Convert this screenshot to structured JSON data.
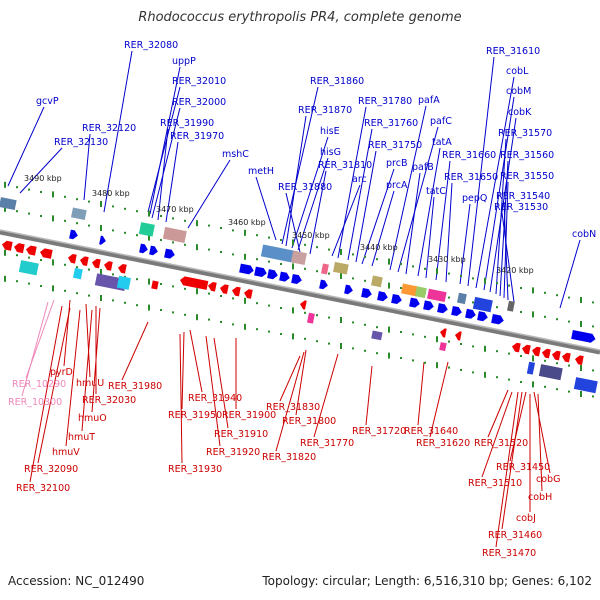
{
  "title": "Rhodococcus erythropolis PR4, complete genome",
  "footer": {
    "accession": "Accession: NC_012490",
    "topology": "Topology: circular; Length: 6,516,310 bp; Genes: 6,102"
  },
  "colors": {
    "forward": "#0000ee",
    "reverse": "#ee0000",
    "rna": "#ff99cc",
    "backbone": "#808080",
    "track": "#2a8a2a",
    "label_blue": "#0000cc",
    "label_red": "#cc0000",
    "label_pink": "#ee88bb"
  },
  "scale_labels": [
    "3490 kbp",
    "3480 kbp",
    "3470 kbp",
    "3460 kbp",
    "3450 kbp",
    "3440 kbp",
    "3430 kbp",
    "3420 kbp"
  ],
  "top_labels": [
    "gcvP",
    "RER_32130",
    "RER_32120",
    "RER_32080",
    "uppP",
    "RER_32010",
    "RER_32000",
    "RER_31990",
    "RER_31970",
    "mshC",
    "metH",
    "RER_31860",
    "RER_31870",
    "hisE",
    "hisG",
    "RER_31880",
    "RER_31810",
    "arc",
    "RER_31780",
    "RER_31760",
    "RER_31750",
    "prcB",
    "prcA",
    "pafA",
    "pafC",
    "pafB",
    "tatA",
    "tatC",
    "RER_31660",
    "RER_31650",
    "pepQ",
    "RER_31610",
    "cobL",
    "cobM",
    "cobK",
    "RER_31570",
    "RER_31560",
    "RER_31550",
    "RER_31540",
    "RER_31530",
    "cobN"
  ],
  "bottom_labels": [
    "pyrD",
    "RER_10290",
    "RER_10300",
    "hmuU",
    "RER_32030",
    "hmuO",
    "hmuT",
    "hmuV",
    "RER_32090",
    "RER_32100",
    "RER_31980",
    "RER_31940",
    "RER_31950",
    "RER_31900",
    "RER_31910",
    "RER_31920",
    "RER_31930",
    "RER_31830",
    "RER_31800",
    "RER_31820",
    "RER_31770",
    "RER_31720",
    "RER_31640",
    "RER_31620",
    "RER_31520",
    "RER_31450",
    "RER_31510",
    "cobG",
    "cobH",
    "cobJ",
    "RER_31460",
    "RER_31470"
  ]
}
